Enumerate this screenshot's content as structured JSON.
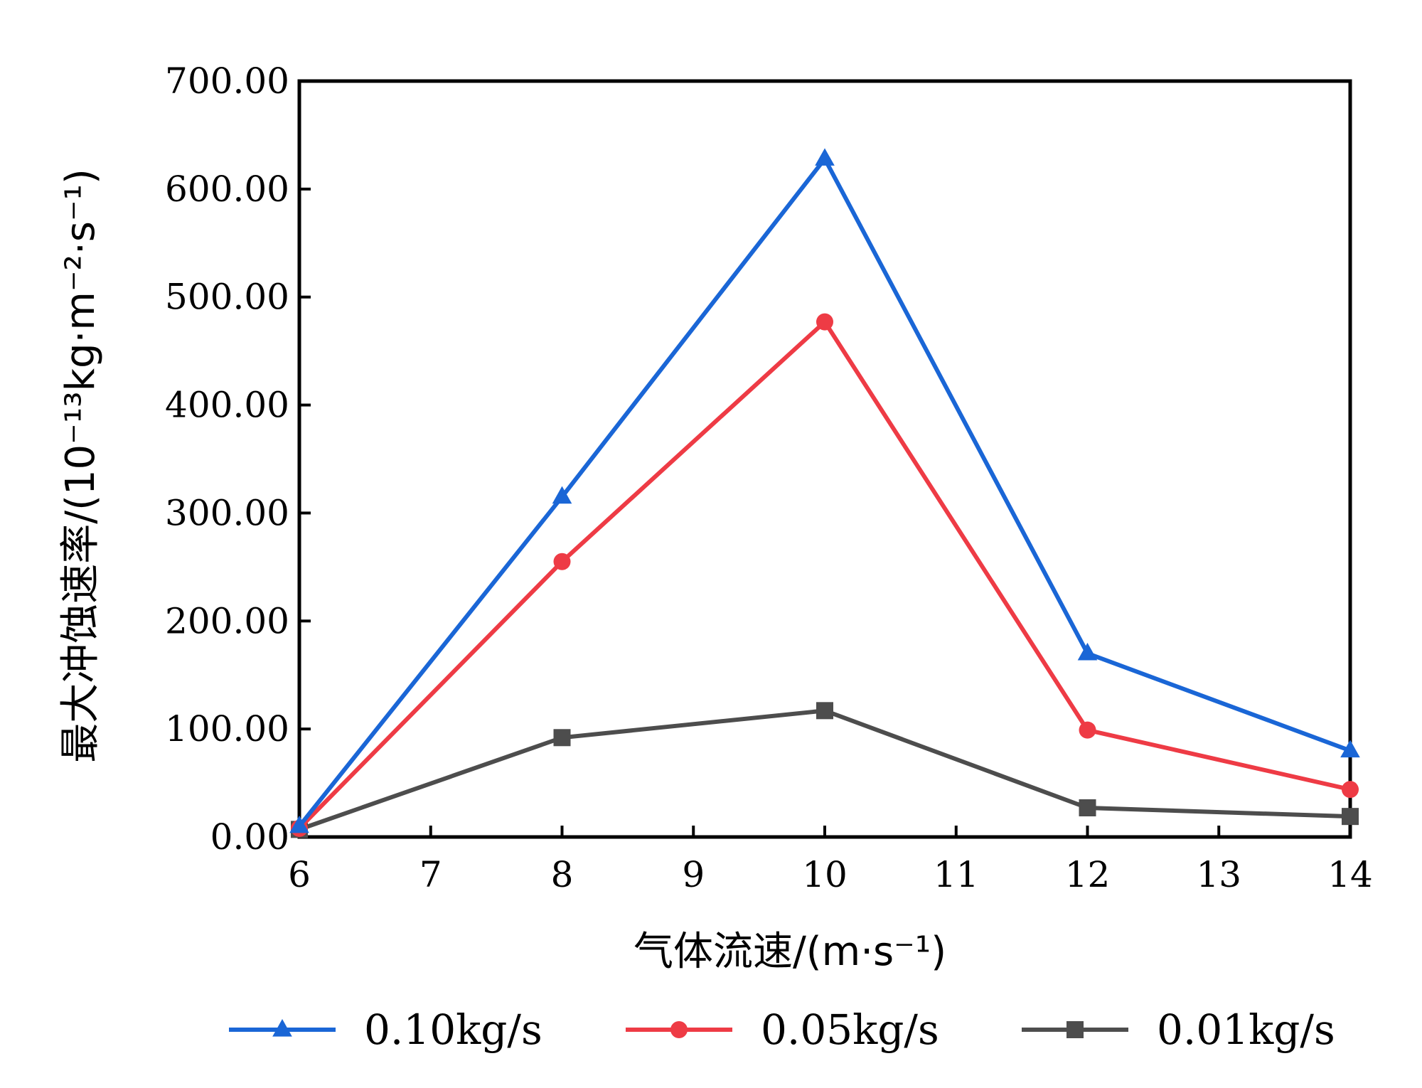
{
  "chart_data": {
    "type": "line",
    "x": [
      6,
      8,
      10,
      12,
      14
    ],
    "x_ticks": [
      "6",
      "7",
      "8",
      "9",
      "10",
      "11",
      "12",
      "13",
      "14"
    ],
    "y_ticks": [
      "0.00",
      "100.00",
      "200.00",
      "300.00",
      "400.00",
      "500.00",
      "600.00",
      "700.00"
    ],
    "xlim": [
      6,
      14
    ],
    "ylim": [
      0,
      700
    ],
    "xlabel": "气体流速/(m·s⁻¹)",
    "ylabel": "最大冲蚀速率/(10⁻¹³kg·m⁻²·s⁻¹)",
    "grid": false,
    "legend_position": "bottom",
    "series": [
      {
        "name": "0.10kg/s",
        "marker": "triangle",
        "color": "#1a66d6",
        "values": [
          10,
          315,
          628,
          170,
          80
        ]
      },
      {
        "name": "0.05kg/s",
        "marker": "circle",
        "color": "#ee3b45",
        "values": [
          8,
          255,
          477,
          99,
          44
        ]
      },
      {
        "name": "0.01kg/s",
        "marker": "square",
        "color": "#4d4d4d",
        "values": [
          7,
          92,
          117,
          27,
          19
        ]
      }
    ]
  }
}
